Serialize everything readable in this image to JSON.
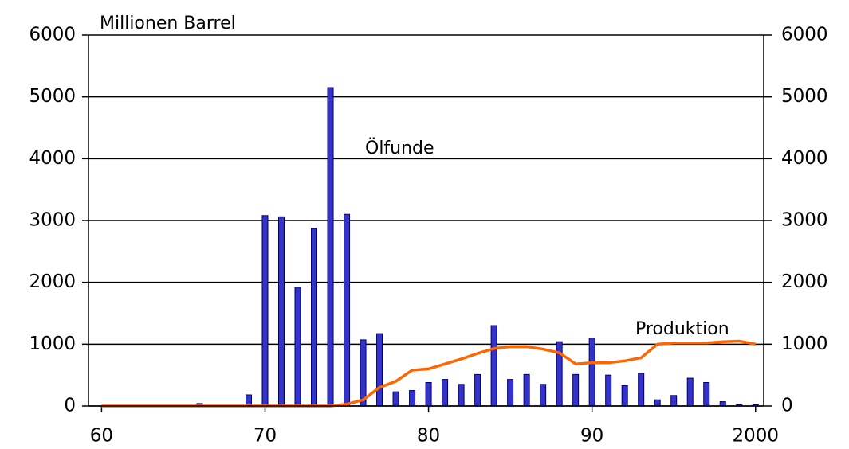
{
  "chart_data": {
    "type": "combo",
    "ylabel": "Millionen Barrel",
    "x": [
      60,
      61,
      62,
      63,
      64,
      65,
      66,
      67,
      68,
      69,
      70,
      71,
      72,
      73,
      74,
      75,
      76,
      77,
      78,
      79,
      80,
      81,
      82,
      83,
      84,
      85,
      86,
      87,
      88,
      89,
      90,
      91,
      92,
      93,
      94,
      95,
      96,
      97,
      98,
      99,
      100
    ],
    "series": [
      {
        "name": "Ölfunde",
        "type": "bar",
        "color": "#3333cc",
        "values": [
          0,
          0,
          0,
          0,
          0,
          0,
          40,
          0,
          0,
          180,
          3080,
          3060,
          1920,
          2870,
          5150,
          3100,
          1070,
          1170,
          230,
          250,
          380,
          430,
          350,
          510,
          1300,
          430,
          510,
          350,
          1040,
          510,
          1100,
          500,
          330,
          530,
          100,
          170,
          450,
          380,
          70,
          20,
          20
        ]
      },
      {
        "name": "Produktion",
        "type": "line",
        "color": "#ff6600",
        "values": [
          0,
          0,
          0,
          0,
          0,
          0,
          0,
          0,
          0,
          0,
          0,
          0,
          0,
          0,
          0,
          30,
          100,
          300,
          400,
          580,
          600,
          680,
          760,
          850,
          930,
          960,
          960,
          920,
          860,
          680,
          700,
          700,
          730,
          780,
          1000,
          1020,
          1020,
          1020,
          1040,
          1050,
          1000
        ]
      }
    ],
    "xlim": [
      59.2,
      100.5
    ],
    "xticks": [
      60,
      70,
      80,
      90,
      {
        "value": 100,
        "label": "2000"
      }
    ],
    "ylim": [
      0,
      6000
    ],
    "yticks": [
      0,
      1000,
      2000,
      3000,
      4000,
      5000,
      6000
    ],
    "y2lim": [
      0,
      6000
    ],
    "y2ticks": [
      0,
      1000,
      2000,
      3000,
      4000,
      5000,
      6000
    ],
    "grid": true
  }
}
